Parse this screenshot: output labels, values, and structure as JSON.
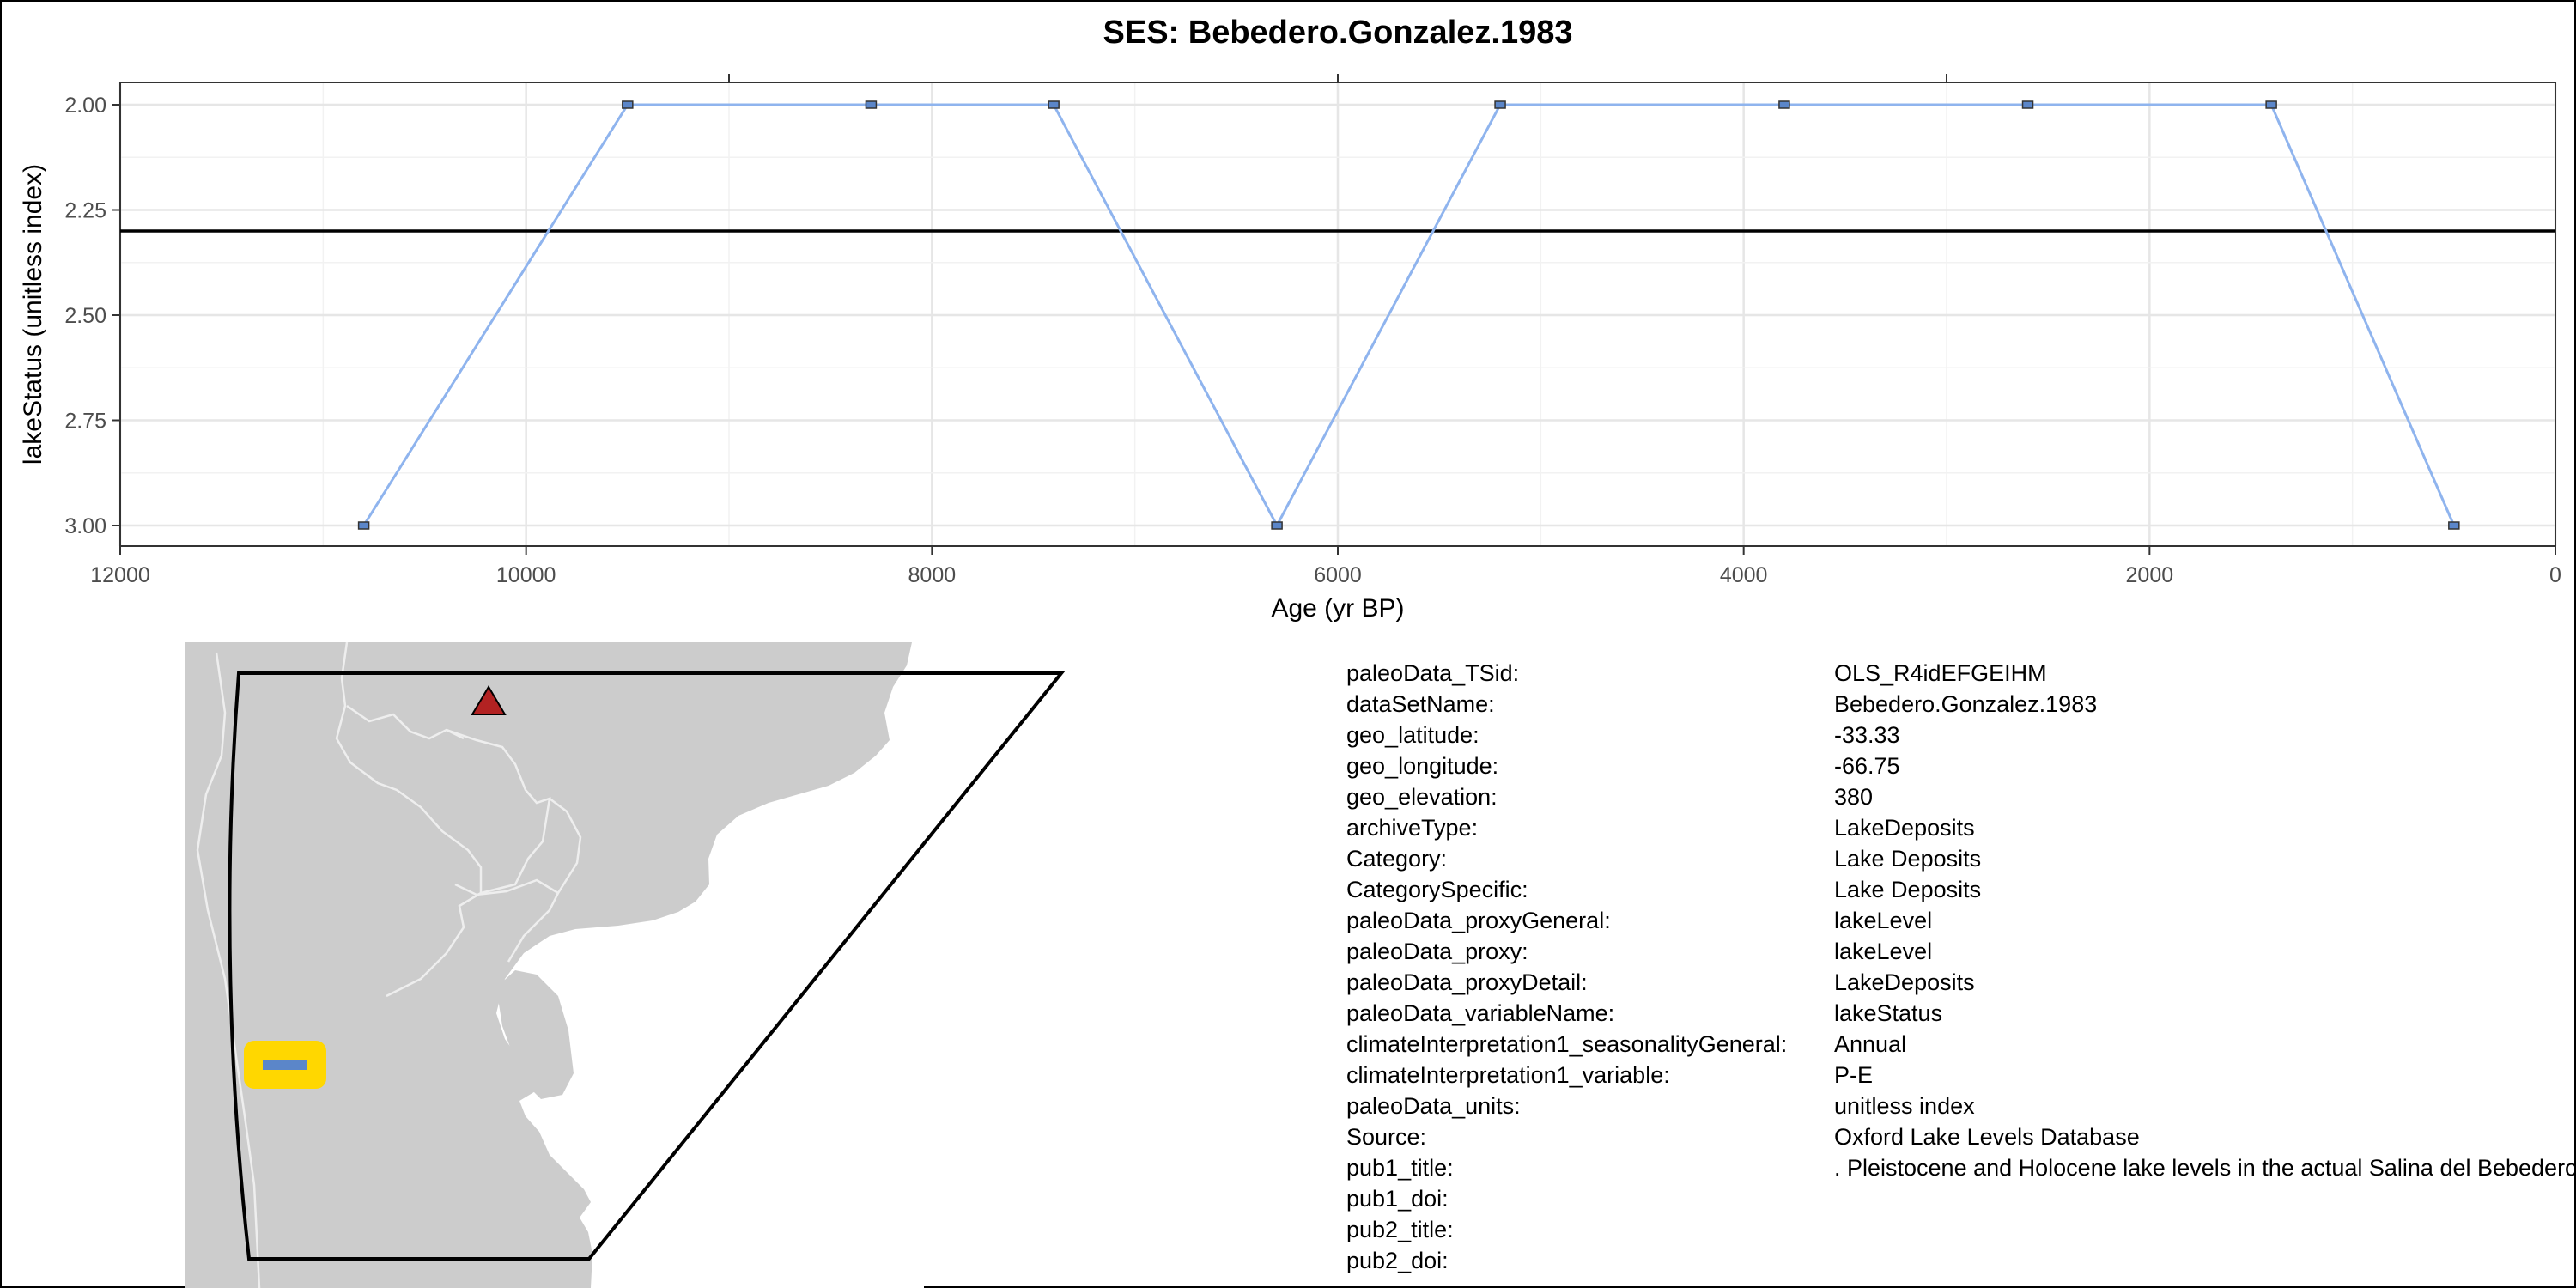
{
  "chart_data": {
    "type": "line",
    "title": "SES: Bebedero.Gonzalez.1983",
    "xlabel": "Age (yr BP)",
    "ylabel": "lakeStatus (unitless index)",
    "xlim": [
      12000,
      0
    ],
    "ylim": [
      3.0,
      2.0
    ],
    "x_reversed": true,
    "y_reversed": true,
    "x_ticks": [
      12000,
      10000,
      8000,
      6000,
      4000,
      2000,
      0
    ],
    "x_tick_labels": [
      "12000",
      "10000",
      "8000",
      "6000",
      "4000",
      "2000",
      "0"
    ],
    "y_ticks": [
      2.0,
      2.25,
      2.5,
      2.75,
      3.0
    ],
    "y_tick_labels": [
      "2.00",
      "2.25",
      "2.50",
      "2.75",
      "3.00"
    ],
    "grid": true,
    "reference_line_y": 2.3,
    "series": [
      {
        "name": "lakeStatus",
        "color": "#8fb4ee",
        "marker_color": "#5b86c9",
        "x": [
          10800,
          9500,
          8300,
          7400,
          6300,
          5200,
          3800,
          2600,
          1400,
          500
        ],
        "y": [
          3.0,
          2.0,
          2.0,
          2.0,
          3.0,
          2.0,
          2.0,
          2.0,
          2.0,
          3.0
        ]
      }
    ]
  },
  "map": {
    "site_marker_icon": "triangle",
    "site_marker_color": "#b22222",
    "record_marker_color": "#5b86c9",
    "record_highlight_color": "#ffd700",
    "land_color": "#cccccc"
  },
  "metadata": [
    {
      "key": "paleoData_TSid:",
      "value": "OLS_R4idEFGEIHM"
    },
    {
      "key": "dataSetName:",
      "value": "Bebedero.Gonzalez.1983"
    },
    {
      "key": "geo_latitude:",
      "value": "-33.33"
    },
    {
      "key": "geo_longitude:",
      "value": "-66.75"
    },
    {
      "key": "geo_elevation:",
      "value": "380"
    },
    {
      "key": "archiveType:",
      "value": "LakeDeposits"
    },
    {
      "key": "Category:",
      "value": "Lake Deposits"
    },
    {
      "key": "CategorySpecific:",
      "value": "Lake Deposits"
    },
    {
      "key": "paleoData_proxyGeneral:",
      "value": "lakeLevel"
    },
    {
      "key": "paleoData_proxy:",
      "value": "lakeLevel"
    },
    {
      "key": "paleoData_proxyDetail:",
      "value": "LakeDeposits"
    },
    {
      "key": "paleoData_variableName:",
      "value": "lakeStatus"
    },
    {
      "key": "climateInterpretation1_seasonalityGeneral:",
      "value": "Annual"
    },
    {
      "key": "climateInterpretation1_variable:",
      "value": "P-E"
    },
    {
      "key": "paleoData_units:",
      "value": "unitless index"
    },
    {
      "key": "Source:",
      "value": "Oxford Lake Levels Database"
    },
    {
      "key": "pub1_title:",
      "value": ". Pleistocene and Holocene lake levels in the actual Salina del Bebedero"
    },
    {
      "key": "pub1_doi:",
      "value": ""
    },
    {
      "key": "pub2_title:",
      "value": ""
    },
    {
      "key": "pub2_doi:",
      "value": ""
    }
  ]
}
